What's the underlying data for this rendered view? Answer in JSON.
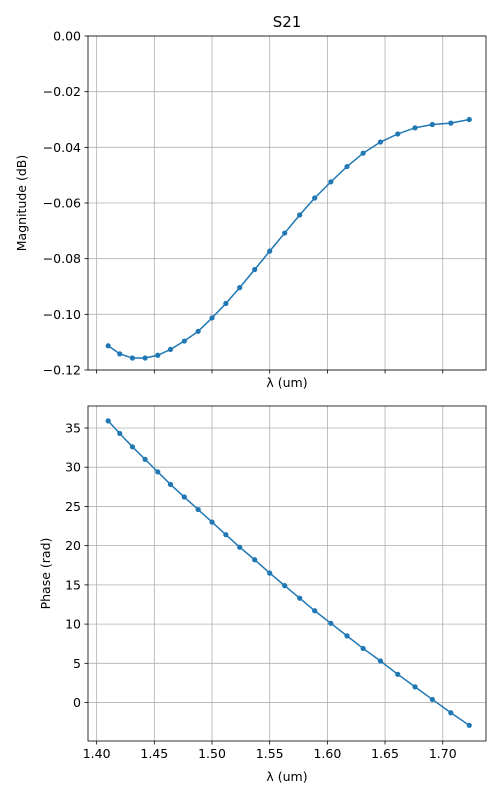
{
  "chart_data": [
    {
      "type": "line",
      "title": "S21",
      "xlabel": "λ (um)",
      "ylabel": "Magnitude (dB)",
      "xlim": [
        1.3925,
        1.7375
      ],
      "ylim": [
        -0.12,
        0.0
      ],
      "xticks": [
        1.4,
        1.45,
        1.5,
        1.55,
        1.6,
        1.65,
        1.7
      ],
      "xtick_labels_visible": false,
      "yticks": [
        0.0,
        -0.02,
        -0.04,
        -0.06,
        -0.08,
        -0.1,
        -0.12
      ],
      "ytick_labels": [
        "0.00",
        "−0.02",
        "−0.04",
        "−0.06",
        "−0.08",
        "−0.10",
        "−0.12"
      ],
      "grid": true,
      "color": "#1f77b4",
      "series": [
        {
          "x": [
            1.41,
            1.42,
            1.431,
            1.442,
            1.453,
            1.464,
            1.476,
            1.488,
            1.5,
            1.512,
            1.524,
            1.537,
            1.55,
            1.563,
            1.576,
            1.589,
            1.603,
            1.617,
            1.631,
            1.646,
            1.661,
            1.676,
            1.691,
            1.707,
            1.723
          ],
          "y": [
            -0.1113,
            -0.1142,
            -0.1157,
            -0.1157,
            -0.1147,
            -0.1126,
            -0.1096,
            -0.1061,
            -0.1013,
            -0.0961,
            -0.0904,
            -0.0839,
            -0.0773,
            -0.0708,
            -0.0643,
            -0.0582,
            -0.0524,
            -0.0469,
            -0.0421,
            -0.0381,
            -0.0352,
            -0.033,
            -0.0318,
            -0.0313,
            -0.03
          ]
        }
      ]
    },
    {
      "type": "line",
      "title": "",
      "xlabel": "λ (um)",
      "ylabel": "Phase (rad)",
      "xlim": [
        1.3925,
        1.7375
      ],
      "ylim": [
        -4.9,
        37.8
      ],
      "xticks": [
        1.4,
        1.45,
        1.5,
        1.55,
        1.6,
        1.65,
        1.7
      ],
      "xtick_labels": [
        "1.40",
        "1.45",
        "1.50",
        "1.55",
        "1.60",
        "1.65",
        "1.70"
      ],
      "yticks": [
        0,
        5,
        10,
        15,
        20,
        25,
        30,
        35
      ],
      "ytick_labels": [
        "0",
        "5",
        "10",
        "15",
        "20",
        "25",
        "30",
        "35"
      ],
      "grid": true,
      "color": "#1f77b4",
      "series": [
        {
          "x": [
            1.41,
            1.42,
            1.431,
            1.442,
            1.453,
            1.464,
            1.476,
            1.488,
            1.5,
            1.512,
            1.524,
            1.537,
            1.55,
            1.563,
            1.576,
            1.589,
            1.603,
            1.617,
            1.631,
            1.646,
            1.661,
            1.676,
            1.691,
            1.707,
            1.723
          ],
          "y": [
            35.9,
            34.3,
            32.6,
            31.0,
            29.4,
            27.8,
            26.2,
            24.6,
            23.0,
            21.4,
            19.8,
            18.2,
            16.5,
            14.9,
            13.3,
            11.7,
            10.1,
            8.5,
            6.9,
            5.3,
            3.6,
            2.0,
            0.4,
            -1.3,
            -2.9
          ]
        }
      ]
    }
  ]
}
